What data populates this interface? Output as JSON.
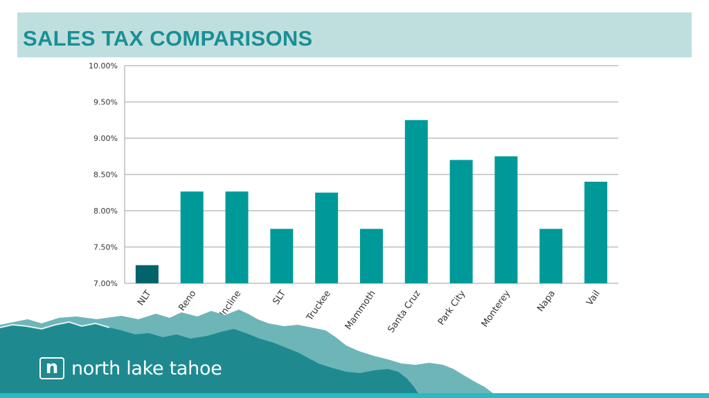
{
  "slide": {
    "title": "SALES TAX COMPARISONS",
    "logo_mark": "n",
    "logo_text": "north lake tahoe"
  },
  "colors": {
    "header_bg": "#bfdfdf",
    "title": "#1a8f95",
    "bar": "#009999",
    "bar_highlight": "#00646a",
    "mountain_dark": "#1e8a90",
    "mountain_light": "#6eb5b8",
    "bottom_bar": "#2bb9c2"
  },
  "chart_data": {
    "type": "bar",
    "title": "",
    "xlabel": "",
    "ylabel": "",
    "categories": [
      "NLT",
      "Reno",
      "Incline",
      "SLT",
      "Truckee",
      "Mammoth",
      "Santa Cruz",
      "Park City",
      "Monterey",
      "Napa",
      "Vail"
    ],
    "values": [
      7.25,
      8.265,
      8.265,
      7.75,
      8.25,
      7.75,
      9.25,
      8.7,
      8.75,
      7.75,
      8.4
    ],
    "highlight_index": 0,
    "ylim": [
      7.0,
      10.0
    ],
    "yticks": [
      7.0,
      7.5,
      8.0,
      8.5,
      9.0,
      9.5,
      10.0
    ],
    "ytick_labels": [
      "7.00%",
      "7.50%",
      "8.00%",
      "8.50%",
      "9.00%",
      "9.50%",
      "10.00%"
    ],
    "grid": true,
    "legend": "none"
  }
}
